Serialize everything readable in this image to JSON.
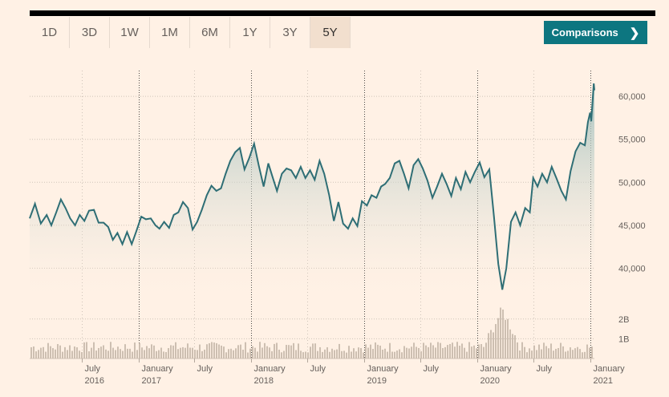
{
  "ranges": [
    "1D",
    "3D",
    "1W",
    "1M",
    "6M",
    "1Y",
    "3Y",
    "5Y"
  ],
  "active_range": "5Y",
  "comparisons_label": "Comparisons",
  "colors": {
    "line": "#2e6e75",
    "area_top": "#9fbfbc",
    "volume": "#cdbfb1",
    "button": "#0d7680"
  },
  "chart_data": {
    "type": "line",
    "title": "",
    "x_range": [
      "2016-01-15",
      "2021-01-15"
    ],
    "ylim": [
      35000,
      63000
    ],
    "y_ticks": [
      40000,
      45000,
      50000,
      55000,
      60000
    ],
    "y_tick_labels": [
      "40,000",
      "45,000",
      "50,000",
      "55,000",
      "60,000"
    ],
    "volume_ticks": [
      1,
      2
    ],
    "volume_tick_labels": [
      "1B",
      "2B"
    ],
    "volume_max": 2.6,
    "x_ticks": [
      {
        "date": "2016-07-01",
        "label": "July",
        "year": "2016",
        "major": false
      },
      {
        "date": "2017-01-01",
        "label": "January",
        "year": "2017",
        "major": true
      },
      {
        "date": "2017-07-01",
        "label": "July",
        "year": "",
        "major": false
      },
      {
        "date": "2018-01-01",
        "label": "January",
        "year": "2018",
        "major": true
      },
      {
        "date": "2018-07-01",
        "label": "July",
        "year": "",
        "major": false
      },
      {
        "date": "2019-01-01",
        "label": "January",
        "year": "2019",
        "major": true
      },
      {
        "date": "2019-07-01",
        "label": "July",
        "year": "",
        "major": false
      },
      {
        "date": "2020-01-01",
        "label": "January",
        "year": "2020",
        "major": true
      },
      {
        "date": "2020-07-01",
        "label": "July",
        "year": "",
        "major": false
      },
      {
        "date": "2021-01-01",
        "label": "January",
        "year": "2021",
        "major": true
      }
    ],
    "series": [
      {
        "points": [
          [
            "2016-01-15",
            45800
          ],
          [
            "2016-02-01",
            47500
          ],
          [
            "2016-02-20",
            45200
          ],
          [
            "2016-03-10",
            46200
          ],
          [
            "2016-03-25",
            45000
          ],
          [
            "2016-04-10",
            46500
          ],
          [
            "2016-04-25",
            48000
          ],
          [
            "2016-05-10",
            47000
          ],
          [
            "2016-05-25",
            45800
          ],
          [
            "2016-06-10",
            45000
          ],
          [
            "2016-06-25",
            46200
          ],
          [
            "2016-07-10",
            45500
          ],
          [
            "2016-07-25",
            46700
          ],
          [
            "2016-08-10",
            46800
          ],
          [
            "2016-08-25",
            45300
          ],
          [
            "2016-09-10",
            45300
          ],
          [
            "2016-09-25",
            44800
          ],
          [
            "2016-10-10",
            43300
          ],
          [
            "2016-10-25",
            44100
          ],
          [
            "2016-11-10",
            42800
          ],
          [
            "2016-11-25",
            44200
          ],
          [
            "2016-12-10",
            42800
          ],
          [
            "2016-12-25",
            44300
          ],
          [
            "2017-01-10",
            46000
          ],
          [
            "2017-01-25",
            45700
          ],
          [
            "2017-02-10",
            45800
          ],
          [
            "2017-02-25",
            45000
          ],
          [
            "2017-03-10",
            44600
          ],
          [
            "2017-03-25",
            45400
          ],
          [
            "2017-04-10",
            44700
          ],
          [
            "2017-04-25",
            46200
          ],
          [
            "2017-05-10",
            46500
          ],
          [
            "2017-05-25",
            47700
          ],
          [
            "2017-06-10",
            47000
          ],
          [
            "2017-06-25",
            44500
          ],
          [
            "2017-07-10",
            45400
          ],
          [
            "2017-07-25",
            46800
          ],
          [
            "2017-08-10",
            48500
          ],
          [
            "2017-08-25",
            49600
          ],
          [
            "2017-09-10",
            49000
          ],
          [
            "2017-09-25",
            49300
          ],
          [
            "2017-10-10",
            51000
          ],
          [
            "2017-10-25",
            52500
          ],
          [
            "2017-11-10",
            53500
          ],
          [
            "2017-11-25",
            54000
          ],
          [
            "2017-12-10",
            51500
          ],
          [
            "2017-12-25",
            52800
          ],
          [
            "2018-01-10",
            54500
          ],
          [
            "2018-01-25",
            52000
          ],
          [
            "2018-02-10",
            49500
          ],
          [
            "2018-02-25",
            52200
          ],
          [
            "2018-03-10",
            50700
          ],
          [
            "2018-03-25",
            49000
          ],
          [
            "2018-04-10",
            51000
          ],
          [
            "2018-04-25",
            51600
          ],
          [
            "2018-05-10",
            51400
          ],
          [
            "2018-05-25",
            50500
          ],
          [
            "2018-06-10",
            51800
          ],
          [
            "2018-06-25",
            50500
          ],
          [
            "2018-07-10",
            51400
          ],
          [
            "2018-07-25",
            50300
          ],
          [
            "2018-08-10",
            52500
          ],
          [
            "2018-08-25",
            51000
          ],
          [
            "2018-09-10",
            48500
          ],
          [
            "2018-09-25",
            45500
          ],
          [
            "2018-10-10",
            47700
          ],
          [
            "2018-10-25",
            45200
          ],
          [
            "2018-11-10",
            44600
          ],
          [
            "2018-11-25",
            45800
          ],
          [
            "2018-12-10",
            44900
          ],
          [
            "2018-12-25",
            47800
          ],
          [
            "2019-01-10",
            47300
          ],
          [
            "2019-01-25",
            48500
          ],
          [
            "2019-02-10",
            48200
          ],
          [
            "2019-02-25",
            49500
          ],
          [
            "2019-03-10",
            49800
          ],
          [
            "2019-03-25",
            50500
          ],
          [
            "2019-04-10",
            52200
          ],
          [
            "2019-04-25",
            52500
          ],
          [
            "2019-05-10",
            51000
          ],
          [
            "2019-05-25",
            49300
          ],
          [
            "2019-06-10",
            52000
          ],
          [
            "2019-06-25",
            52700
          ],
          [
            "2019-07-10",
            51600
          ],
          [
            "2019-07-25",
            50200
          ],
          [
            "2019-08-10",
            48200
          ],
          [
            "2019-08-25",
            49500
          ],
          [
            "2019-09-10",
            51000
          ],
          [
            "2019-09-25",
            49800
          ],
          [
            "2019-10-10",
            48400
          ],
          [
            "2019-10-25",
            50500
          ],
          [
            "2019-11-10",
            49200
          ],
          [
            "2019-11-25",
            51200
          ],
          [
            "2019-12-10",
            50000
          ],
          [
            "2019-12-25",
            51200
          ],
          [
            "2020-01-10",
            52300
          ],
          [
            "2020-01-25",
            50600
          ],
          [
            "2020-02-10",
            51500
          ],
          [
            "2020-02-25",
            46000
          ],
          [
            "2020-03-10",
            40500
          ],
          [
            "2020-03-23",
            37500
          ],
          [
            "2020-04-05",
            40000
          ],
          [
            "2020-04-20",
            45400
          ],
          [
            "2020-05-05",
            46500
          ],
          [
            "2020-05-20",
            45000
          ],
          [
            "2020-06-05",
            47000
          ],
          [
            "2020-06-20",
            46500
          ],
          [
            "2020-07-01",
            50500
          ],
          [
            "2020-07-15",
            49500
          ],
          [
            "2020-07-30",
            51000
          ],
          [
            "2020-08-15",
            50000
          ],
          [
            "2020-08-30",
            51800
          ],
          [
            "2020-09-15",
            50400
          ],
          [
            "2020-09-30",
            49000
          ],
          [
            "2020-10-15",
            48000
          ],
          [
            "2020-10-30",
            51300
          ],
          [
            "2020-11-15",
            53600
          ],
          [
            "2020-11-30",
            54600
          ],
          [
            "2020-12-15",
            54300
          ],
          [
            "2020-12-25",
            57000
          ],
          [
            "2021-01-01",
            58100
          ],
          [
            "2021-01-05",
            57100
          ],
          [
            "2021-01-10",
            60000
          ],
          [
            "2021-01-13",
            61500
          ],
          [
            "2021-01-15",
            60700
          ]
        ]
      }
    ]
  }
}
